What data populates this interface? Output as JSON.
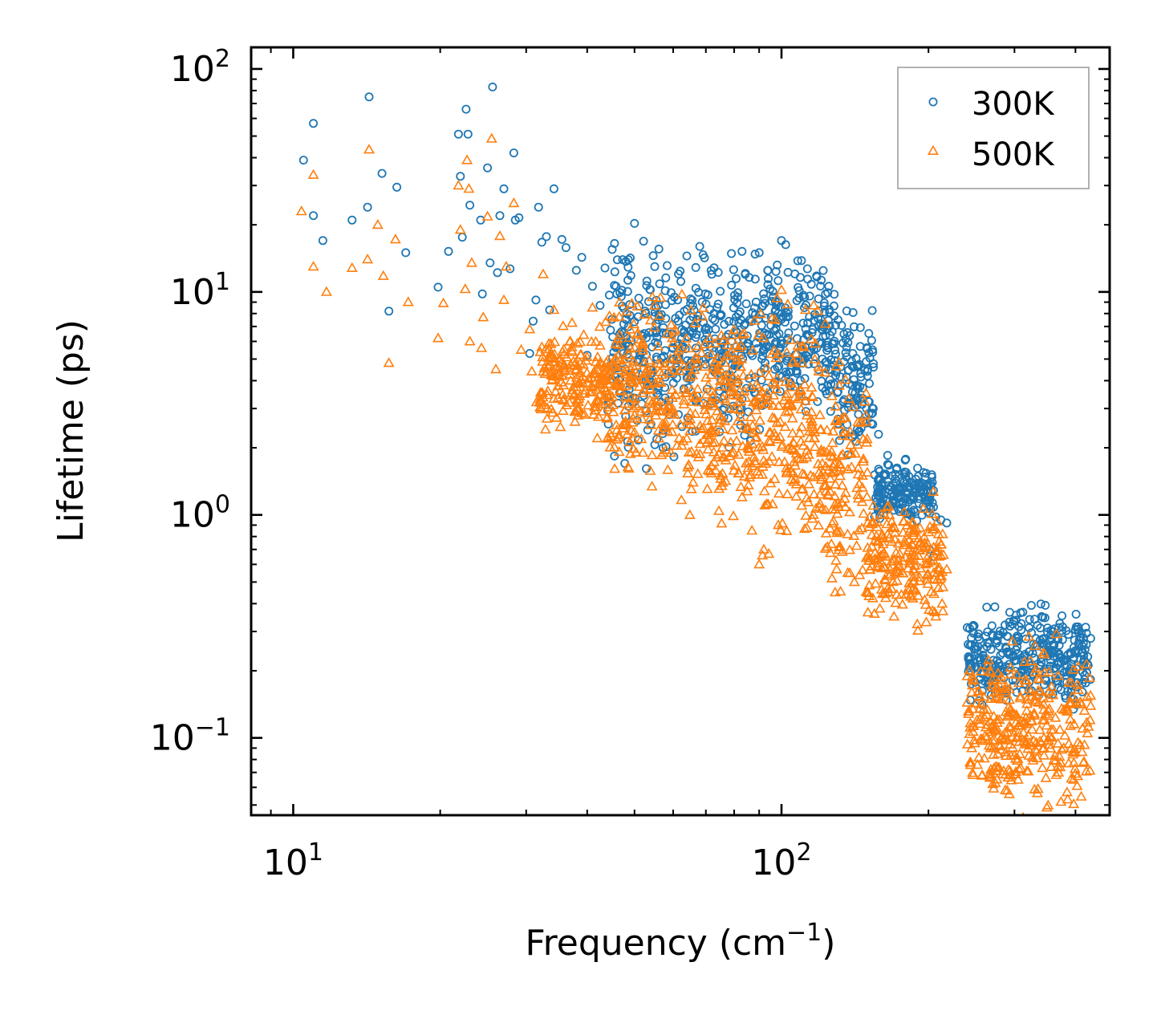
{
  "chart_data": {
    "type": "scatter",
    "title": "",
    "xlabel": "Frequency (cm",
    "xlabel_sup": "−1",
    "xlabel_end": ")",
    "ylabel": "Lifetime (ps)",
    "xscale": "log",
    "yscale": "log",
    "xlim": [
      8.2,
      470
    ],
    "ylim": [
      0.045,
      125
    ],
    "x_ticks": [
      {
        "value": 10,
        "base": "10",
        "exp": "1"
      },
      {
        "value": 100,
        "base": "10",
        "exp": "2"
      }
    ],
    "y_ticks": [
      {
        "value": 0.1,
        "base": "10",
        "exp": "−1"
      },
      {
        "value": 1,
        "base": "10",
        "exp": "0"
      },
      {
        "value": 10,
        "base": "10",
        "exp": "1"
      },
      {
        "value": 100,
        "base": "10",
        "exp": "2"
      }
    ],
    "legend_position": "top-right",
    "series": [
      {
        "name": "300K",
        "marker": "circle",
        "color": "#1f77b4",
        "points": [
          [
            10.5,
            39
          ],
          [
            11,
            57
          ],
          [
            11,
            22
          ],
          [
            11.5,
            17
          ],
          [
            13.2,
            21
          ],
          [
            14.2,
            24
          ],
          [
            14.3,
            75
          ],
          [
            15.2,
            34
          ],
          [
            15.7,
            8.2
          ],
          [
            16.3,
            29.5
          ],
          [
            17,
            15
          ],
          [
            19.8,
            10.5
          ],
          [
            20.8,
            15.2
          ],
          [
            21.8,
            51
          ],
          [
            22,
            33
          ],
          [
            22.2,
            17.6
          ],
          [
            22.6,
            66
          ],
          [
            22.8,
            51
          ],
          [
            23,
            24.5
          ],
          [
            24.2,
            21
          ],
          [
            24.4,
            9.8
          ],
          [
            25,
            36
          ],
          [
            25.3,
            13.5
          ],
          [
            25.6,
            83
          ],
          [
            26.2,
            12.2
          ],
          [
            26.5,
            22
          ],
          [
            27,
            29
          ],
          [
            27.8,
            12.7
          ],
          [
            28.3,
            42
          ],
          [
            28.5,
            21
          ],
          [
            29,
            21.5
          ],
          [
            30.5,
            5.3
          ],
          [
            31,
            7.4
          ],
          [
            31.4,
            9.2
          ],
          [
            31.8,
            24
          ],
          [
            32.3,
            16.7
          ],
          [
            33,
            17.7
          ],
          [
            33.5,
            8.3
          ],
          [
            34.2,
            29
          ],
          [
            35.5,
            17.2
          ],
          [
            36.2,
            15.8
          ],
          [
            38,
            12.5
          ],
          [
            39,
            14.3
          ],
          [
            40,
            5.2
          ],
          [
            41,
            10.6
          ],
          [
            42.5,
            8.7
          ],
          [
            43.5,
            12.8
          ],
          [
            45,
            15.5
          ],
          [
            45.5,
            16.5
          ],
          [
            46,
            9.8
          ],
          [
            48,
            13.7
          ],
          [
            49,
            14.2
          ],
          [
            50,
            20.3
          ],
          [
            53,
            11.2
          ],
          [
            55,
            13
          ],
          [
            62,
            12.4
          ],
          [
            64,
            14.5
          ],
          [
            68,
            16
          ],
          [
            72,
            12
          ],
          [
            83,
            15.2
          ],
          [
            90,
            15
          ],
          [
            98,
            13.2
          ],
          [
            100,
            17
          ],
          [
            102,
            16.3
          ],
          [
            108,
            13.8
          ],
          [
            113,
            12.7
          ],
          [
            118,
            11.8
          ],
          [
            125,
            10.6
          ],
          [
            140,
            5.3
          ],
          [
            145,
            5.7
          ],
          [
            150,
            4.2
          ],
          [
            158,
            2.3
          ],
          [
            165,
            1.85
          ],
          [
            172,
            1.6
          ],
          [
            180,
            1.55
          ],
          [
            190,
            1.62
          ],
          [
            197,
            1.2
          ],
          [
            207,
            0.98
          ],
          [
            212,
            0.95
          ],
          [
            218,
            0.92
          ],
          [
            205,
            0.65
          ],
          [
            201,
            0.7
          ]
        ],
        "bands": [
          {
            "x": [
              44,
              62
            ],
            "y_min": 2.5,
            "y_max": 11.5
          },
          {
            "x": [
              62,
              95
            ],
            "y_min": 3.0,
            "y_max": 11
          },
          {
            "x": [
              95,
              130
            ],
            "y_min": 3.5,
            "y_max": 10
          },
          {
            "x": [
              130,
              155
            ],
            "y_min": 2.0,
            "y_max": 7
          },
          {
            "x": [
              155,
              205
            ],
            "y_min": 1.0,
            "y_max": 1.55
          },
          {
            "x": [
              240,
              430
            ],
            "y_min": 0.16,
            "y_max": 0.34
          }
        ]
      },
      {
        "name": "500K",
        "marker": "triangle",
        "color": "#ff7f0e",
        "points": [
          [
            10.4,
            23
          ],
          [
            11,
            33.5
          ],
          [
            11,
            13
          ],
          [
            11.7,
            10
          ],
          [
            13.2,
            12.8
          ],
          [
            14.2,
            14
          ],
          [
            14.3,
            43.5
          ],
          [
            14.9,
            20
          ],
          [
            15.3,
            11.8
          ],
          [
            15.7,
            4.8
          ],
          [
            16.2,
            17.2
          ],
          [
            17.2,
            9
          ],
          [
            19.8,
            6.2
          ],
          [
            20.3,
            8.9
          ],
          [
            21.8,
            30
          ],
          [
            22,
            19
          ],
          [
            22.5,
            10.3
          ],
          [
            22.7,
            39
          ],
          [
            22.9,
            29
          ],
          [
            23,
            6
          ],
          [
            23.2,
            13.5
          ],
          [
            24.3,
            5.6
          ],
          [
            24.5,
            7.7
          ],
          [
            25,
            21.8
          ],
          [
            25.5,
            48.7
          ],
          [
            26,
            4.5
          ],
          [
            26.5,
            17.8
          ],
          [
            27,
            9.2
          ],
          [
            27.3,
            13
          ],
          [
            28.3,
            25
          ],
          [
            29.3,
            5.5
          ],
          [
            30.5,
            6.8
          ],
          [
            30.8,
            4.4
          ],
          [
            31.5,
            3.2
          ],
          [
            32.5,
            12
          ],
          [
            34.2,
            8.3
          ],
          [
            35.8,
            3.3
          ],
          [
            37,
            4
          ],
          [
            38.5,
            3
          ],
          [
            41,
            8.5
          ],
          [
            42,
            3.2
          ],
          [
            44,
            2.2
          ],
          [
            46,
            2.4
          ],
          [
            50,
            2.8
          ],
          [
            52,
            1.9
          ],
          [
            58,
            1.95
          ],
          [
            64,
            2.2
          ],
          [
            75,
            1.5
          ],
          [
            83,
            1.2
          ],
          [
            87,
            0.85
          ],
          [
            90,
            0.6
          ],
          [
            92,
            0.7
          ],
          [
            110,
            1.1
          ],
          [
            130,
            0.85
          ],
          [
            141,
            0.5
          ],
          [
            150,
            0.45
          ],
          [
            155,
            0.36
          ],
          [
            170,
            0.35
          ],
          [
            180,
            0.44
          ],
          [
            198,
            0.33
          ],
          [
            205,
            0.55
          ],
          [
            210,
            0.65
          ],
          [
            218,
            0.57
          ],
          [
            207,
            0.35
          ],
          [
            214,
            0.37
          ],
          [
            100,
            10.2
          ],
          [
            103,
            8.8
          ],
          [
            112,
            8.3
          ],
          [
            123,
            7.2
          ],
          [
            97,
            7.5
          ]
        ],
        "bands": [
          {
            "x": [
              32,
              44
            ],
            "y_min": 2.8,
            "y_max": 6
          },
          {
            "x": [
              44,
              62
            ],
            "y_min": 2.0,
            "y_max": 7
          },
          {
            "x": [
              62,
              88
            ],
            "y_min": 1.3,
            "y_max": 6.5
          },
          {
            "x": [
              88,
              120
            ],
            "y_min": 1.0,
            "y_max": 5.5
          },
          {
            "x": [
              120,
              150
            ],
            "y_min": 0.6,
            "y_max": 3.5
          },
          {
            "x": [
              150,
              215
            ],
            "y_min": 0.4,
            "y_max": 1.0
          },
          {
            "x": [
              240,
              430
            ],
            "y_min": 0.06,
            "y_max": 0.2
          }
        ]
      }
    ]
  }
}
